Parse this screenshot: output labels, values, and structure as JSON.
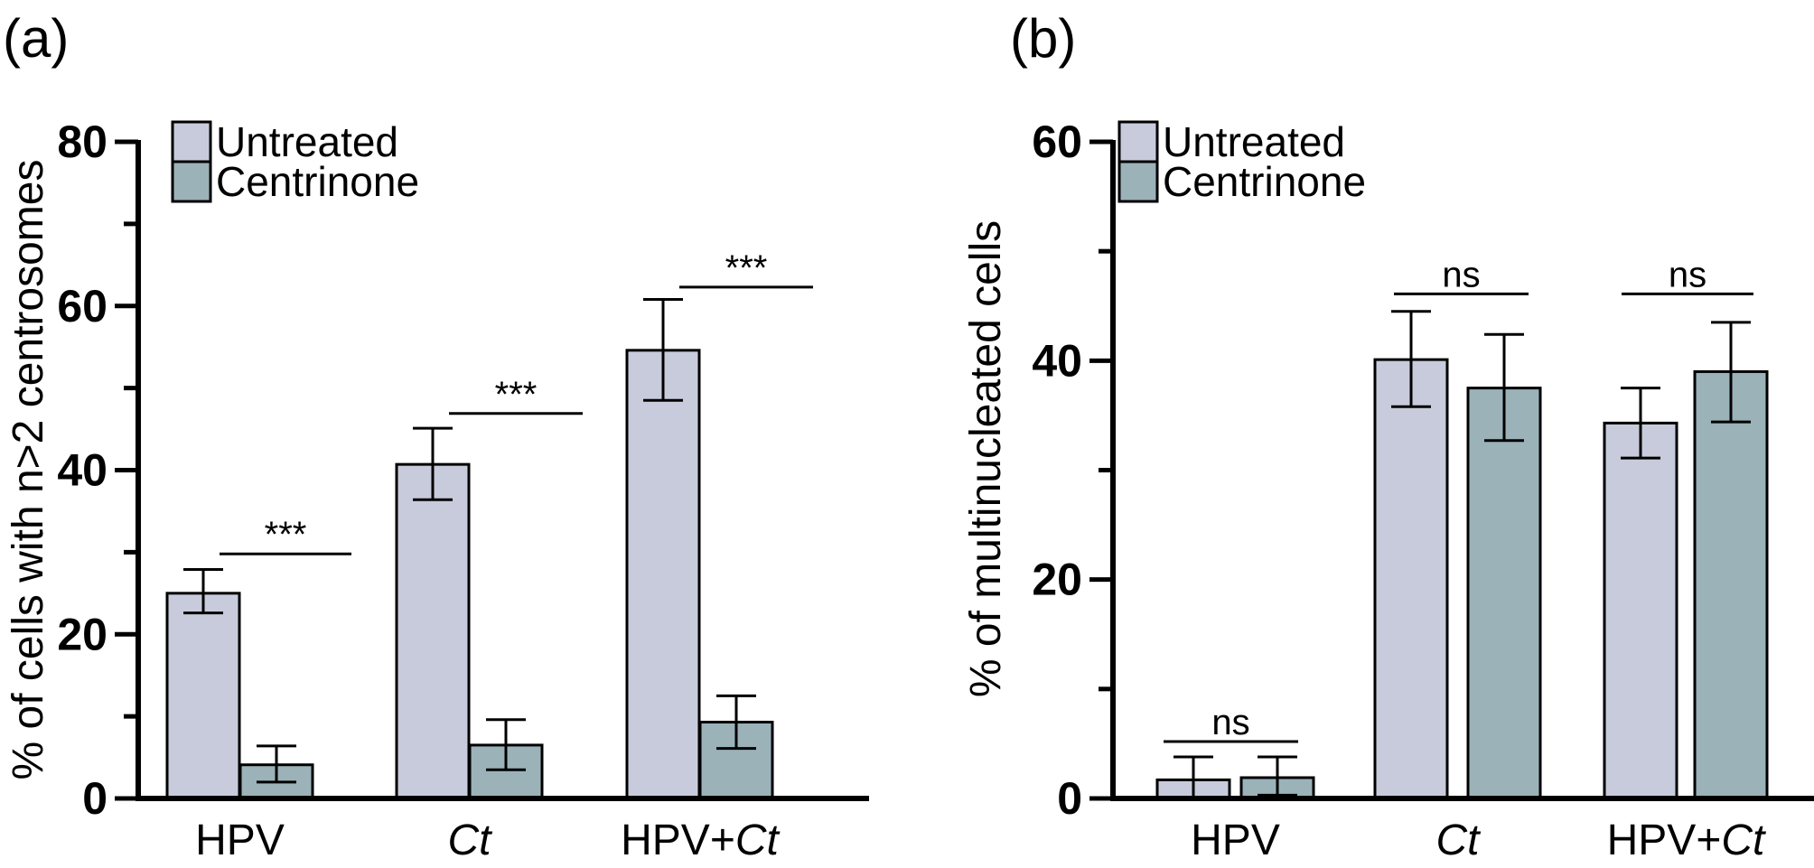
{
  "colors": {
    "untreated": "#c8cbdb",
    "centrinone": "#9bb2b9",
    "axis": "#000000"
  },
  "chart_data": [
    {
      "panel_label": "(a)",
      "type": "bar",
      "ylabel": "% of cells with n>2 centrosomes",
      "ylim": [
        0,
        80
      ],
      "yticks": [
        "0",
        "20",
        "40",
        "60",
        "80"
      ],
      "categories": [
        {
          "pre": "HPV",
          "ital": "",
          "post": ""
        },
        {
          "pre": "",
          "ital": "Ct",
          "post": ""
        },
        {
          "pre": "HPV+",
          "ital": "Ct",
          "post": ""
        }
      ],
      "series": [
        {
          "name": "Untreated",
          "color": "#c8cbdb",
          "values": [
            25,
            40.7,
            54.6
          ],
          "err_low": [
            22.6,
            36.4,
            48.5
          ],
          "err_high": [
            27.9,
            45.1,
            60.8
          ]
        },
        {
          "name": "Centrinone",
          "color": "#9bb2b9",
          "values": [
            4.1,
            6.5,
            9.3
          ],
          "err_low": [
            2.0,
            3.5,
            6.1
          ],
          "err_high": [
            6.4,
            9.6,
            12.5
          ]
        }
      ],
      "significance": [
        "***",
        "***",
        "***"
      ],
      "sig_level": [
        29.8,
        46.9,
        62.3
      ],
      "legend_position": "top-left"
    },
    {
      "panel_label": "(b)",
      "type": "bar",
      "ylabel": "% of multinucleated cells",
      "ylim": [
        0,
        60
      ],
      "yticks": [
        "0",
        "20",
        "40",
        "60"
      ],
      "categories": [
        {
          "pre": "HPV",
          "ital": "",
          "post": ""
        },
        {
          "pre": "",
          "ital": "Ct",
          "post": ""
        },
        {
          "pre": "HPV+",
          "ital": "Ct",
          "post": ""
        }
      ],
      "series": [
        {
          "name": "Untreated",
          "color": "#c8cbdb",
          "values": [
            1.7,
            40.1,
            34.3
          ],
          "err_low": [
            0,
            35.8,
            31.1
          ],
          "err_high": [
            3.8,
            44.5,
            37.5
          ]
        },
        {
          "name": "Centrinone",
          "color": "#9bb2b9",
          "values": [
            1.9,
            37.5,
            39.0
          ],
          "err_low": [
            0.3,
            32.7,
            34.4
          ],
          "err_high": [
            3.8,
            42.4,
            43.5
          ]
        }
      ],
      "significance": [
        "ns",
        "ns",
        "ns"
      ],
      "sig_level": [
        5.2,
        46.1,
        46.1
      ],
      "legend_position": "top-left"
    }
  ]
}
